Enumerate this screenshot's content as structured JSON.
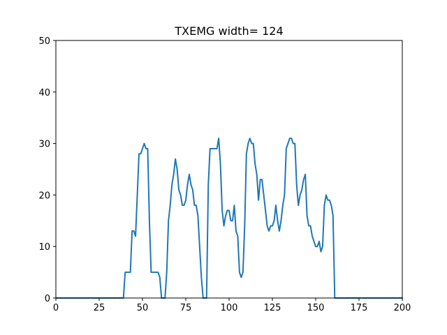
{
  "chart_data": {
    "type": "line",
    "title": "TXEMG width= 124",
    "xlabel": "",
    "ylabel": "",
    "xlim": [
      0,
      200
    ],
    "ylim": [
      0,
      50
    ],
    "xticks": [
      0,
      25,
      50,
      75,
      100,
      125,
      150,
      175,
      200
    ],
    "yticks": [
      0,
      10,
      20,
      30,
      40,
      50
    ],
    "grid": false,
    "line_color": "#1f77b4",
    "series": [
      {
        "x": [
          0,
          38,
          39,
          40,
          41,
          42,
          43,
          44,
          45,
          46,
          47,
          48,
          49,
          50,
          51,
          52,
          53,
          54,
          55,
          56,
          57,
          58,
          59,
          60,
          61,
          62,
          63,
          64,
          65,
          66,
          67,
          68,
          69,
          70,
          71,
          72,
          73,
          74,
          75,
          76,
          77,
          78,
          79,
          80,
          81,
          82,
          83,
          84,
          85,
          86,
          87,
          88,
          89,
          90,
          91,
          92,
          93,
          94,
          95,
          96,
          97,
          98,
          99,
          100,
          101,
          102,
          103,
          104,
          105,
          106,
          107,
          108,
          109,
          110,
          111,
          112,
          113,
          114,
          115,
          116,
          117,
          118,
          119,
          120,
          121,
          122,
          123,
          124,
          125,
          126,
          127,
          128,
          129,
          130,
          131,
          132,
          133,
          134,
          135,
          136,
          137,
          138,
          139,
          140,
          141,
          142,
          143,
          144,
          145,
          146,
          147,
          148,
          149,
          150,
          151,
          152,
          153,
          154,
          155,
          156,
          157,
          158,
          159,
          160,
          161,
          162,
          163,
          164,
          200
        ],
        "y": [
          0,
          0,
          0,
          5,
          5,
          5,
          5,
          13,
          13,
          12,
          20,
          28,
          28,
          29,
          30,
          29,
          29,
          15,
          5,
          5,
          5,
          5,
          5,
          4,
          0,
          0,
          0,
          5,
          15,
          18,
          22,
          24,
          27,
          25,
          21,
          20,
          18,
          18,
          19,
          22,
          24,
          22,
          21,
          18,
          18,
          16,
          10,
          4,
          0,
          0,
          0,
          22,
          29,
          29,
          29,
          29,
          29,
          31,
          26,
          17,
          14,
          16,
          17,
          17,
          15,
          15,
          18,
          13,
          12,
          5,
          4,
          5,
          14,
          28,
          30,
          31,
          30,
          30,
          26,
          24,
          19,
          23,
          23,
          20,
          17,
          14,
          13,
          14,
          14,
          15,
          18,
          15,
          13,
          15,
          18,
          20,
          29,
          30,
          31,
          31,
          30,
          30,
          22,
          18,
          20,
          21,
          23,
          24,
          16,
          14,
          14,
          12,
          11,
          10,
          10,
          11,
          9,
          10,
          18,
          20,
          19,
          19,
          18,
          16,
          0,
          0,
          0,
          0,
          0
        ]
      }
    ]
  }
}
